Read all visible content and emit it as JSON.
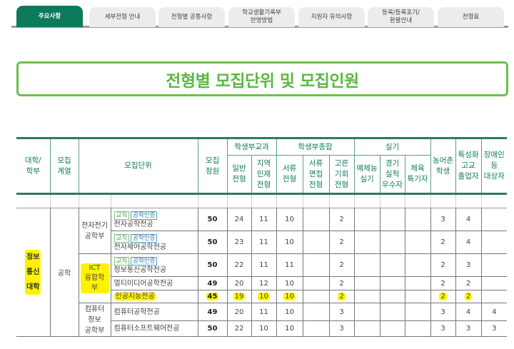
{
  "tabs": [
    {
      "label": "주요사항",
      "active": true
    },
    {
      "label": "세부전형 안내"
    },
    {
      "label": "전형별 공통사항"
    },
    {
      "label": "학교생활기록부\n반영방법"
    },
    {
      "label": "지원자 유의사항"
    },
    {
      "label": "등록/등록포기/\n환불안내"
    },
    {
      "label": "전형료"
    }
  ],
  "title": "전형별 모집단위 및 모집인원",
  "colors": {
    "accent": "#0e7a5c",
    "title": "#5db842",
    "highlight": "#fff200"
  },
  "header": {
    "college": "대학/\n학부",
    "field": "모집\n계열",
    "unit": "모집단위",
    "quota": "모집\n정원",
    "group1": "학생부교과",
    "g1": [
      "일반\n전형",
      "지역\n인재\n전형"
    ],
    "group2": "학생부종합",
    "g2": [
      "서류\n전형",
      "서류\n면접\n전형",
      "고른\n기회\n전형"
    ],
    "group3": "실기",
    "g3": [
      "예체능\n실기",
      "경기\n실적\n우수자",
      "체육\n특기자"
    ],
    "rural": "농어촌\n학생",
    "special": "특성화\n고교\n졸업자",
    "disabled": "장애인\n등\n대상자"
  },
  "body": {
    "college": "정보\n통신\n대학",
    "field": "공학",
    "depts": [
      "전자전기\n공학부",
      "ICT\n융합학부",
      "컴퓨터\n정보\n공학부"
    ],
    "badges": [
      "교직",
      "공학인증"
    ],
    "rows": [
      {
        "major": "전자공학전공",
        "badges": true,
        "vals": [
          "50",
          "24",
          "11",
          "10",
          "",
          "2",
          "",
          "",
          "",
          "3",
          "4",
          ""
        ]
      },
      {
        "major": "전자제어공학전공",
        "badges": true,
        "vals": [
          "50",
          "23",
          "11",
          "10",
          "",
          "2",
          "",
          "",
          "",
          "2",
          "4",
          ""
        ]
      },
      {
        "major": "정보통신공학전공",
        "badges": true,
        "vals": [
          "50",
          "22",
          "11",
          "11",
          "",
          "2",
          "",
          "",
          "",
          "2",
          "3",
          ""
        ]
      },
      {
        "major": "멀티미디어공학전공",
        "vals": [
          "49",
          "20",
          "12",
          "10",
          "",
          "2",
          "",
          "",
          "",
          "2",
          "2",
          ""
        ]
      },
      {
        "major": "인공지능전공",
        "highlight": true,
        "vals": [
          "45",
          "19",
          "10",
          "10",
          "",
          "2",
          "",
          "",
          "",
          "2",
          "2",
          ""
        ]
      },
      {
        "major": "컴퓨터공학전공",
        "vals": [
          "49",
          "20",
          "11",
          "10",
          "",
          "3",
          "",
          "",
          "",
          "3",
          "4",
          "4"
        ]
      },
      {
        "major": "컴퓨터소프트웨어전공",
        "vals": [
          "50",
          "22",
          "10",
          "10",
          "",
          "3",
          "",
          "",
          "",
          "3",
          "3",
          "3"
        ]
      }
    ]
  }
}
